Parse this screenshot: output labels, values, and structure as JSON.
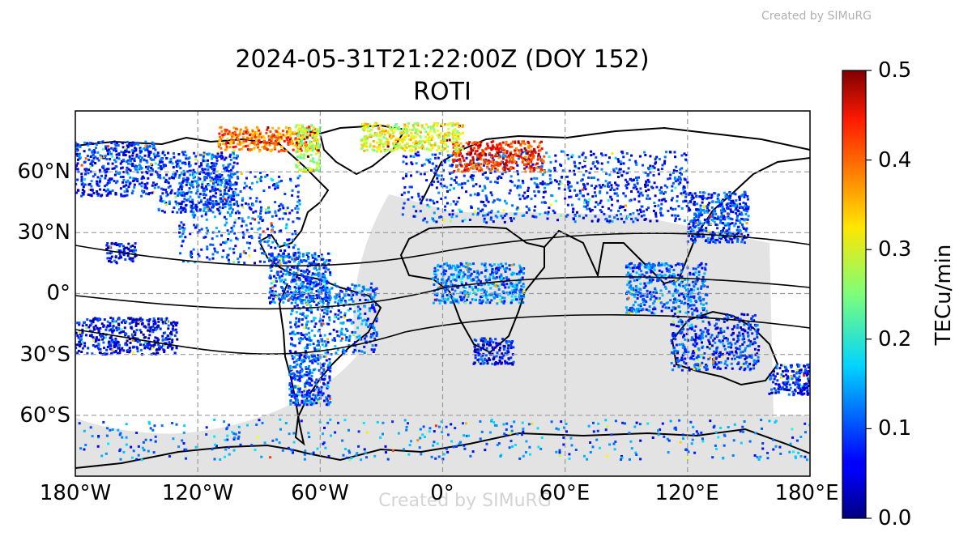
{
  "watermark": "Created by SIMuRG",
  "title": "2024-05-31T21:22:00Z (DOY 152)",
  "subtitle": "ROTI",
  "map": {
    "lon_ticks": [
      "180°W",
      "120°W",
      "60°W",
      "0°",
      "60°E",
      "120°E",
      "180°E"
    ],
    "lat_ticks": [
      "60°N",
      "30°N",
      "0°",
      "30°S",
      "60°S"
    ],
    "lon_range": [
      -180,
      180
    ],
    "lat_range": [
      -90,
      90
    ],
    "gridlines": true,
    "night_shading_color": "#e3e3e3",
    "coastline_color": "#000000"
  },
  "colorbar": {
    "label": "TECu/min",
    "ticks": [
      "0.0",
      "0.1",
      "0.2",
      "0.3",
      "0.4",
      "0.5"
    ],
    "range": [
      0.0,
      0.5
    ],
    "colormap": "jet"
  },
  "chart_data": {
    "type": "scatter",
    "title": "2024-05-31T21:22:00Z (DOY 152)",
    "subtitle": "ROTI",
    "xlabel": "",
    "ylabel": "",
    "xlim": [
      -180,
      180
    ],
    "ylim": [
      -90,
      90
    ],
    "value_label": "TECu/min",
    "value_range": [
      0.0,
      0.5
    ],
    "regions": [
      {
        "lon": [
          -180,
          -140
        ],
        "lat": [
          48,
          75
        ],
        "mean_roti": 0.08
      },
      {
        "lon": [
          -140,
          -100
        ],
        "lat": [
          40,
          70
        ],
        "mean_roti": 0.09
      },
      {
        "lon": [
          -130,
          -70
        ],
        "lat": [
          15,
          60
        ],
        "mean_roti": 0.1
      },
      {
        "lon": [
          -110,
          -60
        ],
        "lat": [
          70,
          82
        ],
        "mean_roti": 0.38
      },
      {
        "lon": [
          -72,
          -60
        ],
        "lat": [
          60,
          83
        ],
        "mean_roti": 0.28
      },
      {
        "lon": [
          -85,
          -55
        ],
        "lat": [
          -5,
          20
        ],
        "mean_roti": 0.1
      },
      {
        "lon": [
          -75,
          -32
        ],
        "lat": [
          -30,
          5
        ],
        "mean_roti": 0.11
      },
      {
        "lon": [
          -75,
          -55
        ],
        "lat": [
          -55,
          -30
        ],
        "mean_roti": 0.1
      },
      {
        "lon": [
          -165,
          -150
        ],
        "lat": [
          15,
          25
        ],
        "mean_roti": 0.06
      },
      {
        "lon": [
          -180,
          -130
        ],
        "lat": [
          -30,
          -12
        ],
        "mean_roti": 0.06
      },
      {
        "lon": [
          -20,
          60
        ],
        "lat": [
          35,
          70
        ],
        "mean_roti": 0.09
      },
      {
        "lon": [
          5,
          50
        ],
        "lat": [
          60,
          75
        ],
        "mean_roti": 0.42
      },
      {
        "lon": [
          -40,
          10
        ],
        "lat": [
          70,
          84
        ],
        "mean_roti": 0.3
      },
      {
        "lon": [
          -5,
          40
        ],
        "lat": [
          -5,
          15
        ],
        "mean_roti": 0.12
      },
      {
        "lon": [
          15,
          35
        ],
        "lat": [
          -35,
          -22
        ],
        "mean_roti": 0.07
      },
      {
        "lon": [
          60,
          120
        ],
        "lat": [
          35,
          70
        ],
        "mean_roti": 0.08
      },
      {
        "lon": [
          120,
          150
        ],
        "lat": [
          25,
          50
        ],
        "mean_roti": 0.09
      },
      {
        "lon": [
          90,
          130
        ],
        "lat": [
          -10,
          15
        ],
        "mean_roti": 0.11
      },
      {
        "lon": [
          112,
          155
        ],
        "lat": [
          -38,
          -10
        ],
        "mean_roti": 0.08
      },
      {
        "lon": [
          160,
          180
        ],
        "lat": [
          -50,
          -35
        ],
        "mean_roti": 0.07
      },
      {
        "lon": [
          -180,
          180
        ],
        "lat": [
          -82,
          -62
        ],
        "mean_roti": 0.12
      }
    ]
  }
}
